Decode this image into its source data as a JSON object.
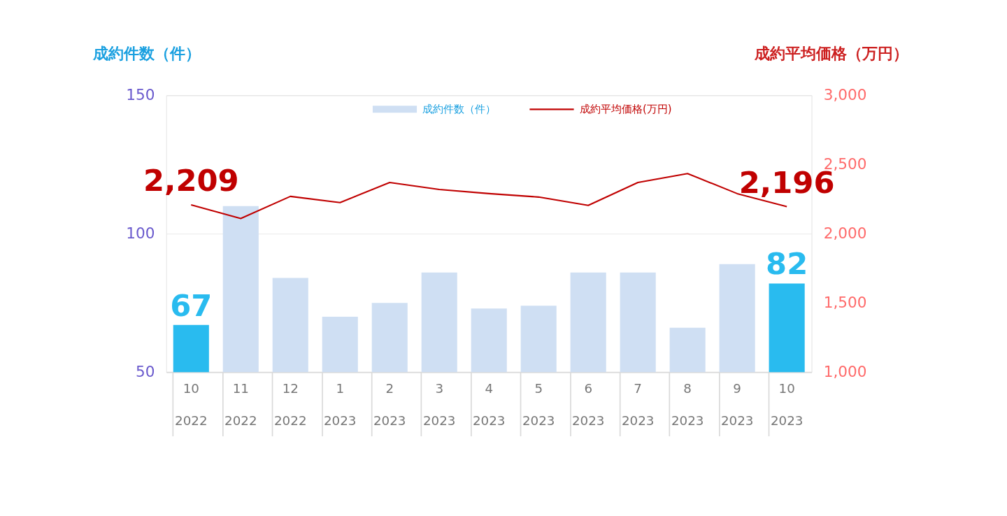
{
  "chart_data": {
    "type": "bar",
    "categories": [
      "10\n2022",
      "11\n2022",
      "12\n2022",
      "1\n2023",
      "2\n2023",
      "3\n2023",
      "4\n2023",
      "5\n2023",
      "6\n2023",
      "7\n2023",
      "8\n2023",
      "9\n2023",
      "10\n2023"
    ],
    "ylabel": "成約件数（件）",
    "y2label": "成約平均価格（万円）",
    "ylim": [
      50,
      150
    ],
    "yticks": [
      50,
      100,
      150
    ],
    "y2lim": [
      1000,
      3000
    ],
    "y2ticks": [
      {
        "value": 1000,
        "label": "1,000"
      },
      {
        "value": 1500,
        "label": "1,500"
      },
      {
        "value": 2000,
        "label": "2,000"
      },
      {
        "value": 2500,
        "label": "2,500"
      },
      {
        "value": 3000,
        "label": "3,000"
      }
    ],
    "series": [
      {
        "name": "成約件数（件）",
        "color": "#cfdff3",
        "colors": [
          "#29bbef",
          "#cfdff3",
          "#cfdff3",
          "#cfdff3",
          "#cfdff3",
          "#cfdff3",
          "#cfdff3",
          "#cfdff3",
          "#cfdff3",
          "#cfdff3",
          "#cfdff3",
          "#cfdff3",
          "#29bbef"
        ],
        "values": [
          67,
          110,
          84,
          70,
          75,
          86,
          73,
          74,
          86,
          86,
          66,
          89,
          82
        ],
        "value_labels": [
          "67",
          null,
          null,
          null,
          null,
          null,
          null,
          null,
          null,
          null,
          null,
          null,
          "82"
        ]
      },
      {
        "name": "成約平均価格(万円)",
        "type": "line",
        "axis": "y2",
        "color": "#c00000",
        "values": [
          2209,
          2110,
          2270,
          2225,
          2370,
          2320,
          2290,
          2265,
          2205,
          2370,
          2435,
          2290,
          2196
        ],
        "value_labels": [
          "2,209",
          null,
          null,
          null,
          null,
          null,
          null,
          null,
          null,
          null,
          null,
          null,
          "2,196"
        ]
      }
    ],
    "grid": "y",
    "legend": "top",
    "marker": "none",
    "line_style": "solid"
  }
}
